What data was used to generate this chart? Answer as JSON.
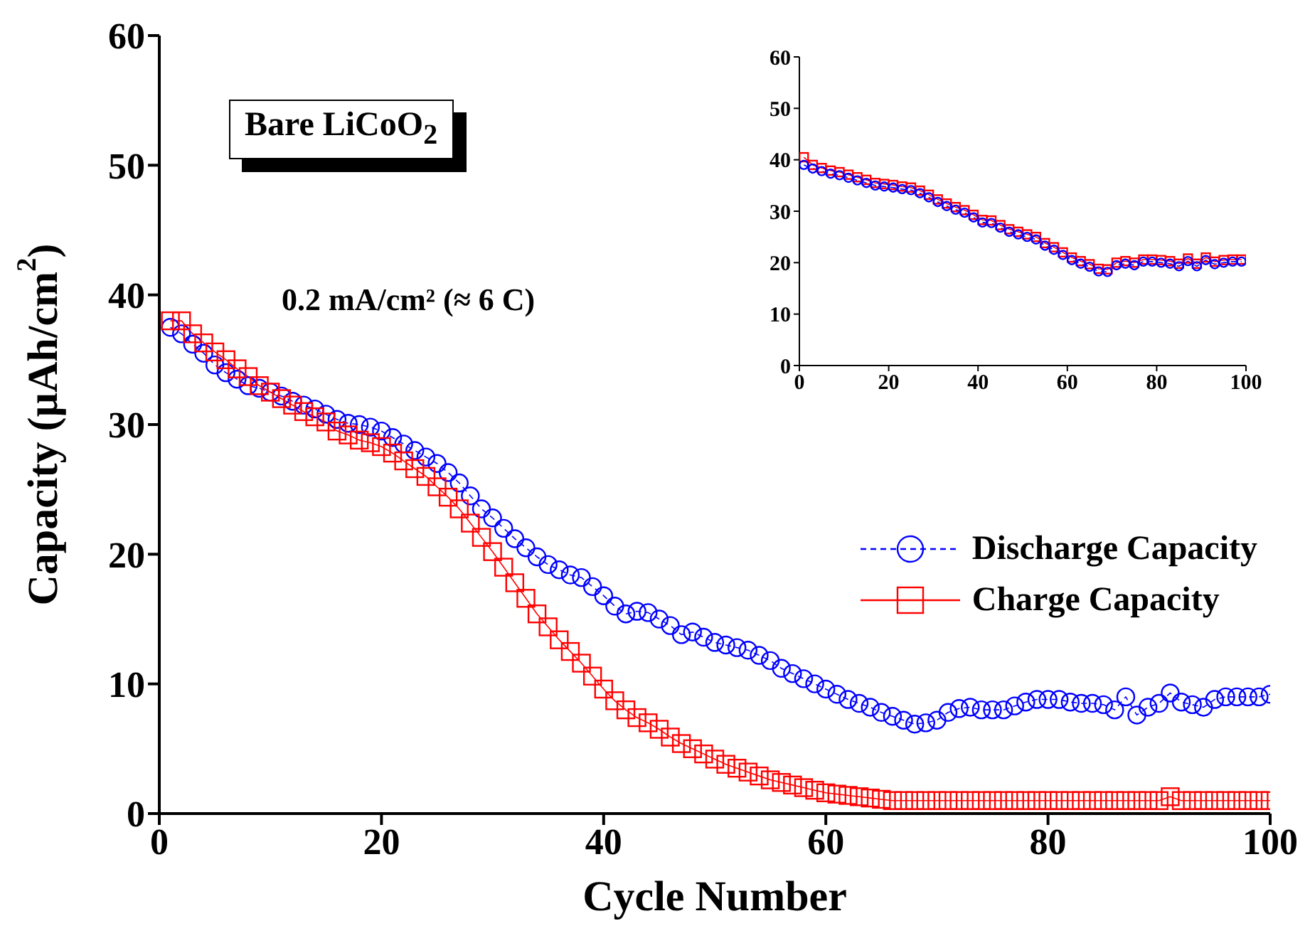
{
  "chart_data": [
    {
      "type": "line",
      "xlabel": "Cycle Number",
      "ylabel": "Capacity (µAh/cm$^{2}$)",
      "xlim": [
        0,
        100
      ],
      "xticks": [
        0,
        20,
        40,
        60,
        80,
        100
      ],
      "ylim": [
        0,
        60
      ],
      "yticks": [
        0,
        10,
        20,
        30,
        40,
        50,
        60
      ],
      "legend": "right",
      "annotations": [
        "Bare LiCoO$_{2}$",
        "0.2 mA/cm² (≈ 6 C)"
      ],
      "x": [
        1,
        2,
        3,
        4,
        5,
        6,
        7,
        8,
        9,
        10,
        11,
        12,
        13,
        14,
        15,
        16,
        17,
        18,
        19,
        20,
        21,
        22,
        23,
        24,
        25,
        26,
        27,
        28,
        29,
        30,
        31,
        32,
        33,
        34,
        35,
        36,
        37,
        38,
        39,
        40,
        41,
        42,
        43,
        44,
        45,
        46,
        47,
        48,
        49,
        50,
        51,
        52,
        53,
        54,
        55,
        56,
        57,
        58,
        59,
        60,
        61,
        62,
        63,
        64,
        65,
        66,
        67,
        68,
        69,
        70,
        71,
        72,
        73,
        74,
        75,
        76,
        77,
        78,
        79,
        80,
        81,
        82,
        83,
        84,
        85,
        86,
        87,
        88,
        89,
        90,
        91,
        92,
        93,
        94,
        95,
        96,
        97,
        98,
        99,
        100
      ],
      "series": [
        {
          "name": "Discharge Capacity",
          "color": "#0000ff",
          "marker": "circle",
          "line_style": "dashed",
          "values": [
            37.5,
            37.0,
            36.2,
            35.5,
            34.6,
            34.0,
            33.5,
            33.0,
            32.8,
            32.5,
            32.2,
            31.8,
            31.5,
            31.2,
            30.8,
            30.4,
            30.1,
            30.0,
            29.8,
            29.5,
            29.0,
            28.5,
            28.0,
            27.5,
            27.0,
            26.3,
            25.5,
            24.5,
            23.5,
            22.8,
            22.0,
            21.2,
            20.5,
            19.8,
            19.2,
            18.8,
            18.4,
            18.2,
            17.5,
            16.8,
            16.0,
            15.4,
            15.6,
            15.5,
            15.0,
            14.5,
            13.8,
            14.0,
            13.6,
            13.2,
            13.0,
            12.8,
            12.6,
            12.2,
            11.8,
            11.2,
            10.8,
            10.4,
            10.0,
            9.6,
            9.2,
            8.8,
            8.5,
            8.2,
            7.8,
            7.5,
            7.2,
            6.9,
            7.0,
            7.2,
            7.8,
            8.1,
            8.2,
            8.0,
            8.0,
            8.0,
            8.3,
            8.6,
            8.8,
            8.8,
            8.8,
            8.6,
            8.5,
            8.5,
            8.4,
            8.0,
            9.0,
            7.6,
            8.2,
            8.5,
            9.3,
            8.6,
            8.4,
            8.2,
            8.8,
            9.0,
            9.0,
            9.0,
            9.0,
            9.2
          ]
        },
        {
          "name": "Charge Capacity",
          "color": "#ff0000",
          "marker": "square",
          "line_style": "solid",
          "values": [
            38.0,
            38.0,
            37.0,
            36.3,
            35.6,
            35.0,
            34.3,
            33.7,
            33.0,
            32.5,
            32.0,
            31.5,
            31.0,
            30.6,
            30.2,
            29.5,
            29.2,
            28.8,
            28.6,
            28.3,
            27.8,
            27.2,
            26.6,
            26.0,
            25.2,
            24.4,
            23.5,
            22.4,
            21.3,
            20.2,
            19.0,
            17.8,
            16.6,
            15.4,
            14.4,
            13.4,
            12.5,
            11.6,
            10.6,
            9.6,
            8.7,
            8.0,
            7.4,
            7.0,
            6.5,
            5.9,
            5.4,
            5.0,
            4.6,
            4.2,
            3.8,
            3.5,
            3.2,
            2.9,
            2.6,
            2.4,
            2.2,
            2.0,
            1.8,
            1.6,
            1.5,
            1.4,
            1.3,
            1.2,
            1.1,
            1.0,
            1.0,
            1.0,
            1.0,
            1.0,
            1.0,
            1.0,
            1.0,
            1.0,
            1.0,
            1.0,
            1.0,
            1.0,
            1.0,
            1.0,
            1.0,
            1.0,
            1.0,
            1.0,
            1.0,
            1.0,
            1.0,
            1.0,
            1.0,
            1.0,
            1.3,
            1.0,
            1.0,
            1.0,
            1.0,
            1.0,
            1.0,
            1.0,
            1.0,
            1.0
          ]
        }
      ]
    },
    {
      "type": "line",
      "xlim": [
        0,
        100
      ],
      "xticks": [
        0,
        20,
        40,
        60,
        80,
        100
      ],
      "ylim": [
        0,
        60
      ],
      "yticks": [
        0,
        10,
        20,
        30,
        40,
        50,
        60
      ],
      "x": [
        1,
        3,
        5,
        7,
        9,
        11,
        13,
        15,
        17,
        19,
        21,
        23,
        25,
        27,
        29,
        31,
        33,
        35,
        37,
        39,
        41,
        43,
        45,
        47,
        49,
        51,
        53,
        55,
        57,
        59,
        61,
        63,
        65,
        67,
        69,
        71,
        73,
        75,
        77,
        79,
        81,
        83,
        85,
        87,
        89,
        91,
        93,
        95,
        97,
        99
      ],
      "series": [
        {
          "color": "#ff0000",
          "marker": "square",
          "line_style": "solid",
          "values": [
            40.5,
            39.0,
            38.4,
            37.9,
            37.6,
            37.1,
            36.6,
            36.1,
            35.5,
            35.3,
            35.1,
            34.8,
            34.6,
            34.0,
            33.2,
            32.3,
            31.5,
            30.8,
            30.2,
            29.3,
            28.3,
            28.2,
            27.3,
            26.5,
            26.0,
            25.5,
            25.0,
            23.8,
            23.0,
            22.0,
            21.0,
            20.3,
            19.7,
            18.8,
            18.7,
            20.0,
            20.3,
            20.0,
            20.6,
            20.6,
            20.5,
            20.3,
            19.8,
            20.8,
            19.8,
            21.0,
            20.2,
            20.5,
            20.6,
            20.6
          ]
        },
        {
          "color": "#0000ff",
          "marker": "circle",
          "line_style": "dashed",
          "values": [
            39.0,
            38.3,
            37.8,
            37.3,
            37.0,
            36.5,
            36.0,
            35.5,
            35.0,
            34.8,
            34.6,
            34.3,
            34.1,
            33.5,
            32.7,
            31.8,
            31.0,
            30.3,
            29.7,
            28.8,
            27.8,
            27.7,
            26.8,
            26.0,
            25.5,
            25.0,
            24.5,
            23.3,
            22.5,
            21.5,
            20.5,
            19.8,
            19.2,
            18.3,
            18.2,
            19.5,
            19.8,
            19.5,
            20.2,
            20.2,
            20.0,
            19.8,
            19.3,
            20.3,
            19.3,
            20.5,
            19.7,
            20.0,
            20.2,
            20.2
          ]
        }
      ]
    }
  ]
}
